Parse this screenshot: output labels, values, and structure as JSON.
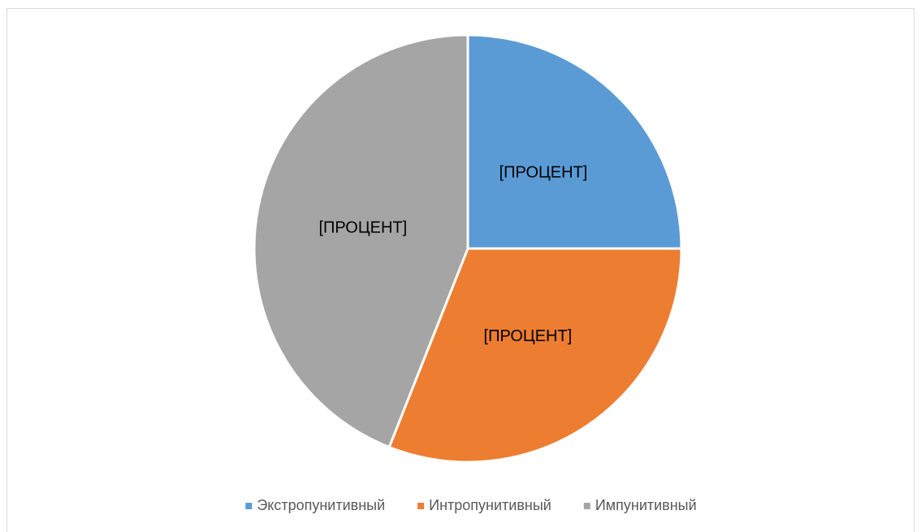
{
  "chart_data": {
    "type": "pie",
    "categories": [
      "Экстропунитивный",
      "Интропунитивный",
      "Импунитивный"
    ],
    "values": [
      25,
      31,
      44
    ],
    "value_labels": [
      "[ПРОЦЕНТ]",
      "[ПРОЦЕНТ]",
      "[ПРОЦЕНТ]"
    ],
    "colors": [
      "#5b9bd5",
      "#ed7d31",
      "#a5a5a5"
    ],
    "legend": "bottom"
  }
}
